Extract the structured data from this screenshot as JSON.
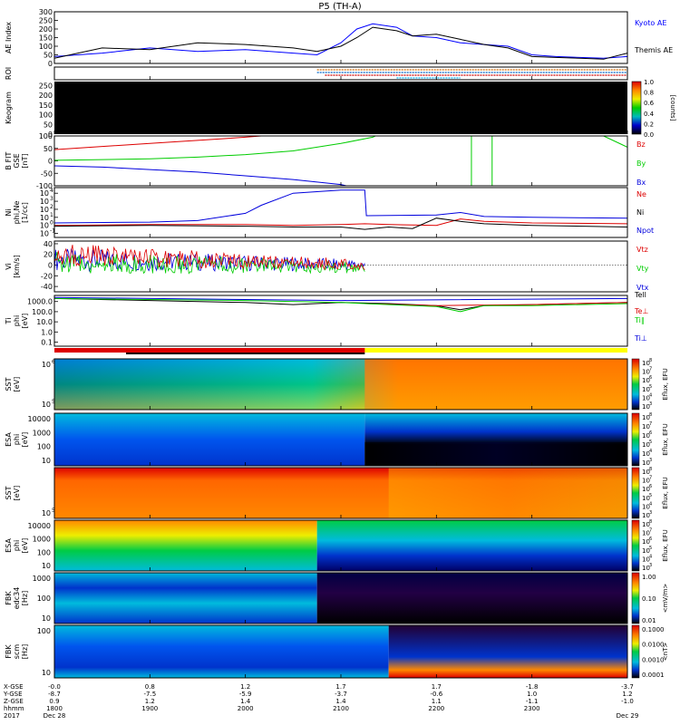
{
  "title": "P5 (TH-A)",
  "chart_data": [
    {
      "type": "line",
      "id": "ae",
      "ylabel": "AE Index",
      "yticks": [
        0,
        50,
        100,
        150,
        200,
        250,
        300
      ],
      "ylim": [
        0,
        300
      ],
      "series": [
        {
          "name": "Kyoto AE",
          "color": "#0000ff",
          "x": [
            1800,
            1830,
            1900,
            1930,
            2000,
            2030,
            2045,
            2100,
            2110,
            2120,
            2135,
            2145,
            2200,
            2215,
            2230,
            2245,
            2300,
            2315,
            2330,
            2345,
            2400
          ],
          "y": [
            40,
            60,
            90,
            70,
            80,
            60,
            50,
            120,
            200,
            230,
            210,
            160,
            150,
            120,
            110,
            100,
            50,
            40,
            35,
            30,
            40
          ]
        },
        {
          "name": "Themis AE",
          "color": "#000000",
          "x": [
            1800,
            1830,
            1900,
            1930,
            2000,
            2030,
            2045,
            2100,
            2110,
            2120,
            2135,
            2145,
            2200,
            2215,
            2230,
            2245,
            2300,
            2315,
            2330,
            2345,
            2400
          ],
          "y": [
            30,
            90,
            80,
            120,
            110,
            90,
            70,
            100,
            150,
            210,
            190,
            160,
            170,
            140,
            110,
            90,
            40,
            35,
            30,
            25,
            60
          ]
        }
      ]
    },
    {
      "type": "heatmap",
      "id": "roi",
      "ylabel": "ROI",
      "rows": [
        {
          "color": "#cc6600",
          "x_start": 2045,
          "x_end": 2400
        },
        {
          "color": "#0066cc",
          "x_start": 2045,
          "x_end": 2400
        },
        {
          "color": "#cc0000",
          "x_start": 2050,
          "x_end": 2400
        },
        {
          "color": "#00aaee",
          "x_start": 2135,
          "x_end": 2215
        }
      ]
    },
    {
      "type": "heatmap",
      "id": "keogram",
      "ylabel": "Keogram",
      "yticks": [
        0,
        50,
        100,
        150,
        200,
        250
      ],
      "ylim": [
        0,
        270
      ],
      "colorbar": {
        "label": "[counts]",
        "ticks": [
          0.0,
          0.2,
          0.4,
          0.6,
          0.8,
          1.0
        ],
        "colors": [
          "#000000",
          "#0000cc",
          "#00bbbb",
          "#00cc00",
          "#eeee00",
          "#ff8800",
          "#dd0000"
        ]
      },
      "fill": "#000000"
    },
    {
      "type": "line",
      "id": "bfield",
      "ylabel": "B FIT\nGSE\n[nT]",
      "yticks": [
        -100,
        -50,
        0,
        50,
        100
      ],
      "ylim": [
        -100,
        100
      ],
      "series": [
        {
          "name": "Bz",
          "color": "#dd0000",
          "x": [
            1800,
            1830,
            1900,
            1930,
            2000,
            2020
          ],
          "y": [
            45,
            58,
            70,
            82,
            95,
            105
          ]
        },
        {
          "name": "By",
          "color": "#00cc00",
          "x": [
            1800,
            1830,
            1900,
            1930,
            2000,
            2030,
            2100,
            2120,
            2125
          ],
          "y": [
            2,
            5,
            8,
            15,
            25,
            40,
            70,
            95,
            110
          ]
        },
        {
          "name": "Bx",
          "color": "#0000dd",
          "x": [
            1800,
            1830,
            1900,
            1930,
            2000,
            2030,
            2100,
            2110
          ],
          "y": [
            -20,
            -25,
            -35,
            -45,
            -60,
            -75,
            -95,
            -110
          ]
        }
      ],
      "annotations": [
        "Bz",
        "By",
        "Bx"
      ]
    },
    {
      "type": "line",
      "id": "density",
      "ylabel": "Ni\nphi,Ne\n[1/cc]",
      "yticks": [
        "10^-1",
        "10^0",
        "10^1",
        "10^2",
        "10^3",
        "10^4"
      ],
      "ylim": [
        -1.5,
        4.7
      ],
      "log": true,
      "series": [
        {
          "name": "Ne",
          "color": "#dd0000",
          "x": [
            1800,
            1900,
            2000,
            2030,
            2100,
            2115,
            2130,
            2200,
            2215,
            2230,
            2300,
            2400
          ],
          "y": [
            0.0,
            0.1,
            0.1,
            0.0,
            0.1,
            0.2,
            0.1,
            0.0,
            0.8,
            0.5,
            0.3,
            0.2
          ]
        },
        {
          "name": "Ni",
          "color": "#000000",
          "x": [
            1800,
            1900,
            2000,
            2030,
            2100,
            2115,
            2130,
            2145,
            2200,
            2215,
            2230,
            2300,
            2400
          ],
          "y": [
            -0.1,
            0.0,
            -0.1,
            -0.2,
            -0.2,
            -0.5,
            -0.2,
            -0.4,
            0.9,
            0.5,
            0.2,
            0.0,
            -0.2
          ]
        },
        {
          "name": "Npot",
          "color": "#0000dd",
          "x": [
            1800,
            1900,
            1930,
            2000,
            2010,
            2030,
            2100,
            2115,
            2116,
            2200,
            2215,
            2230,
            2300,
            2400
          ],
          "y": [
            0.3,
            0.4,
            0.6,
            1.5,
            2.5,
            4.0,
            4.4,
            4.4,
            1.2,
            1.3,
            1.6,
            1.1,
            1.0,
            0.9
          ]
        }
      ]
    },
    {
      "type": "line",
      "id": "velocity",
      "ylabel": "Vi\n[km/s]",
      "yticks": [
        -40,
        -20,
        0,
        20,
        40
      ],
      "ylim": [
        -50,
        45
      ],
      "series": [
        {
          "name": "Vtz",
          "color": "#dd0000",
          "x": [
            1800,
            2115
          ],
          "y": [
            20,
            0
          ]
        },
        {
          "name": "Vty",
          "color": "#00cc00",
          "x": [
            1800,
            2115
          ],
          "y": [
            5,
            -5
          ]
        },
        {
          "name": "Vtx",
          "color": "#0000dd",
          "x": [
            1800,
            2115
          ],
          "y": [
            10,
            0
          ]
        }
      ]
    },
    {
      "type": "line",
      "id": "temperature",
      "ylabel": "Ti\nphi\n[eV]",
      "yticks": [
        "0.1",
        "1.0",
        "10.0",
        "100.0",
        "1000.0"
      ],
      "ylim": [
        -1.4,
        3.6
      ],
      "log": true,
      "series": [
        {
          "name": "Tell",
          "color": "#000000",
          "x": [
            1800,
            1900,
            2000,
            2030,
            2100,
            2130,
            2200,
            2215,
            2230,
            2300,
            2400
          ],
          "y": [
            3.3,
            3.1,
            2.9,
            2.7,
            2.9,
            2.8,
            2.6,
            2.2,
            2.6,
            2.7,
            2.9
          ]
        },
        {
          "name": "Te_perp",
          "color": "#dd0000",
          "x": [
            2115,
            2200,
            2300,
            2400
          ],
          "y": [
            2.8,
            2.6,
            2.7,
            2.9
          ]
        },
        {
          "name": "Ti_par",
          "color": "#00cc00",
          "x": [
            1800,
            2000,
            2100,
            2130,
            2200,
            2215,
            2230,
            2300,
            2400
          ],
          "y": [
            3.3,
            3.1,
            2.9,
            2.7,
            2.5,
            2.0,
            2.6,
            2.6,
            2.8
          ]
        },
        {
          "name": "Ti_perp",
          "color": "#0000dd",
          "x": [
            1800,
            2000,
            2100,
            2400
          ],
          "y": [
            3.4,
            3.2,
            3.1,
            3.3
          ]
        }
      ],
      "annotations": [
        "Tell",
        "Te⊥",
        "Ti∥",
        "Ti⊥"
      ]
    },
    {
      "type": "heatmap",
      "id": "sst_ion",
      "ylabel": "SST\n[eV]",
      "yticks": [
        "10^5",
        "10^6"
      ],
      "colorbar": {
        "label": "Eflux, EFU",
        "ticks": [
          "10^3",
          "10^4",
          "10^5",
          "10^6",
          "10^7",
          "10^8"
        ]
      }
    },
    {
      "type": "heatmap",
      "id": "esa_ion",
      "ylabel": "ESA\nphi\n[eV]",
      "yticks": [
        "10",
        "100",
        "1000",
        "10000"
      ],
      "colorbar": {
        "label": "Eflux, EFU",
        "ticks": [
          "10^3",
          "10^4",
          "10^5",
          "10^6",
          "10^7",
          "10^8"
        ]
      }
    },
    {
      "type": "heatmap",
      "id": "sst_elec",
      "ylabel": "SST\n[eV]",
      "yticks": [
        "10^5"
      ],
      "colorbar": {
        "label": "Eflux, EFU",
        "ticks": [
          "10^3",
          "10^4",
          "10^5",
          "10^6",
          "10^7",
          "10^8"
        ]
      }
    },
    {
      "type": "heatmap",
      "id": "esa_elec",
      "ylabel": "ESA\nphi\n[eV]",
      "yticks": [
        "10",
        "100",
        "1000",
        "10000"
      ],
      "colorbar": {
        "label": "Eflux, EFU",
        "ticks": [
          "10^3",
          "10^4",
          "10^5",
          "10^6",
          "10^7",
          "10^8"
        ]
      }
    },
    {
      "type": "heatmap",
      "id": "fbk_edc",
      "ylabel": "FBK\nedc34\n[Hz]",
      "yticks": [
        "10",
        "100",
        "1000"
      ],
      "colorbar": {
        "label": "<mV/m>",
        "ticks": [
          "0.01",
          "0.10",
          "1.00"
        ]
      }
    },
    {
      "type": "heatmap",
      "id": "fbk_scm",
      "ylabel": "FBK\nscm\n[Hz]",
      "yticks": [
        "10",
        "100"
      ],
      "colorbar": {
        "label": "<nT>",
        "ticks": [
          "0.0001",
          "0.0010",
          "0.0100",
          "0.1000"
        ]
      }
    }
  ],
  "xaxis": {
    "row_labels": [
      "X-GSE",
      "Y-GSE",
      "Z-GSE",
      "hhmm",
      "2017"
    ],
    "ticks": [
      {
        "t": 1800,
        "vals": [
          "-0.0",
          "-8.7",
          "0.9",
          "1800",
          "Dec 28"
        ]
      },
      {
        "t": 1900,
        "vals": [
          "0.8",
          "-7.5",
          "1.2",
          "1900",
          ""
        ]
      },
      {
        "t": 2000,
        "vals": [
          "1.2",
          "-5.9",
          "1.4",
          "2000",
          ""
        ]
      },
      {
        "t": 2100,
        "vals": [
          "1.7",
          "-3.7",
          "1.4",
          "2100",
          ""
        ]
      },
      {
        "t": 2200,
        "vals": [
          "1.7",
          "-0.6",
          "1.1",
          "2200",
          ""
        ]
      },
      {
        "t": 2300,
        "vals": [
          "-1.8",
          "1.0",
          "-1.1",
          "2300",
          ""
        ]
      },
      {
        "t": 2400,
        "vals": [
          "-3.7",
          "1.2",
          "-1.0",
          "",
          "Dec 29"
        ]
      }
    ]
  }
}
